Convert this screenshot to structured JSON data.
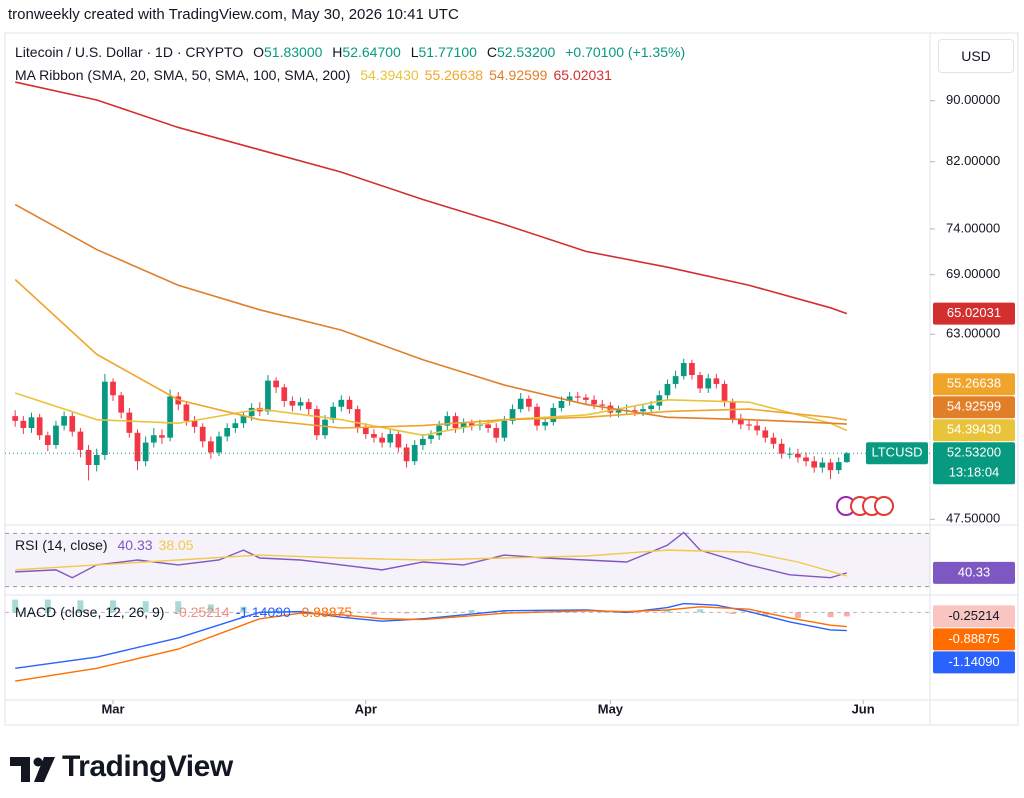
{
  "header": {
    "title": "tronweekly created with TradingView.com, May 30, 2026 10:41 UTC"
  },
  "chart_data": [
    {
      "type": "candlestick",
      "title": "Litecoin / U.S. Dollar · 1D · CRYPTO",
      "legend": {
        "open_label": "O",
        "open": "51.83000",
        "high_label": "H",
        "high": "52.64700",
        "low_label": "L",
        "low": "51.77100",
        "close_label": "C",
        "close": "52.53200",
        "change": "+0.70100 (+1.35%)"
      },
      "indicator": "MA Ribbon (SMA, 20, SMA, 50, SMA, 100, SMA, 200)",
      "currency": "USD",
      "symbol": "LTCUSD",
      "countdown": "13:18:04",
      "up_color": "#089981",
      "down_color": "#f23645",
      "log_scale": true,
      "grid": false,
      "xlim": [
        -1.25,
        112.2
      ],
      "xticks": [
        {
          "value": 12,
          "label": "Mar"
        },
        {
          "value": 43,
          "label": "Apr"
        },
        {
          "value": 73,
          "label": "May"
        },
        {
          "value": 104,
          "label": "Jun"
        }
      ],
      "ylim": [
        47.3,
        99.5
      ],
      "yticks": [
        {
          "value": 90,
          "label": "90.00000"
        },
        {
          "value": 82,
          "label": "82.00000"
        },
        {
          "value": 74,
          "label": "74.00000"
        },
        {
          "value": 69,
          "label": "69.00000"
        },
        {
          "value": 63,
          "label": "63.00000"
        },
        {
          "value": 47.5,
          "label": "47.50000"
        }
      ],
      "open": [
        55.6,
        55.2,
        54.6,
        55.5,
        54.0,
        53.2,
        54.8,
        55.6,
        54.3,
        52.8,
        51.6,
        52.4,
        58.6,
        57.4,
        55.9,
        54.2,
        51.9,
        53.4,
        54.0,
        53.8,
        57.3,
        56.6,
        55.2,
        54.7,
        53.5,
        52.6,
        53.9,
        54.6,
        55.0,
        55.6,
        56.3,
        56.0,
        58.7,
        58.1,
        56.9,
        56.5,
        56.8,
        56.2,
        54.0,
        55.3,
        56.4,
        57.0,
        56.2,
        54.6,
        54.1,
        53.8,
        53.4,
        54.1,
        53.0,
        51.9,
        53.2,
        53.7,
        54.0,
        54.8,
        55.6,
        54.6,
        55.0,
        54.8,
        54.9,
        54.6,
        53.8,
        55.2,
        56.2,
        57.1,
        56.4,
        54.8,
        55.1,
        56.3,
        56.9,
        57.3,
        57.2,
        57.0,
        56.6,
        56.5,
        55.9,
        56.1,
        56.1,
        56.0,
        56.2,
        56.5,
        57.4,
        58.4,
        59.1,
        60.3,
        59.2,
        58.0,
        58.9,
        58.4,
        56.8,
        55.4,
        54.9,
        54.8,
        54.4,
        53.8,
        53.3,
        52.5,
        52.5,
        52.2,
        51.9,
        51.4,
        51.8,
        51.2,
        51.83
      ],
      "high": [
        56.1,
        55.6,
        55.9,
        55.8,
        54.3,
        55.2,
        56.0,
        55.9,
        54.6,
        53.2,
        52.9,
        59.3,
        58.9,
        57.7,
        56.3,
        54.5,
        53.9,
        54.6,
        54.5,
        57.9,
        57.7,
        56.9,
        55.6,
        55.0,
        53.9,
        54.3,
        55.0,
        55.4,
        56.0,
        56.7,
        56.8,
        59.2,
        59.0,
        58.4,
        57.3,
        57.2,
        57.1,
        56.5,
        55.7,
        56.8,
        57.4,
        57.3,
        56.5,
        55.0,
        54.5,
        54.2,
        54.5,
        54.4,
        53.3,
        53.6,
        54.1,
        54.4,
        55.2,
        56.0,
        55.9,
        55.4,
        55.3,
        55.3,
        55.3,
        55.0,
        55.6,
        56.6,
        57.6,
        57.4,
        56.7,
        55.5,
        56.7,
        57.3,
        57.7,
        57.7,
        57.5,
        57.4,
        57.0,
        56.8,
        56.5,
        56.6,
        56.5,
        56.6,
        56.9,
        57.8,
        58.8,
        59.6,
        60.7,
        60.6,
        59.5,
        59.3,
        59.3,
        58.7,
        57.1,
        55.8,
        55.3,
        55.2,
        54.7,
        54.2,
        53.7,
        53.0,
        52.9,
        52.6,
        52.3,
        52.2,
        52.1,
        52.2,
        52.647
      ],
      "low": [
        54.7,
        54.1,
        54.2,
        53.6,
        52.7,
        52.9,
        54.4,
        53.9,
        52.2,
        50.4,
        51.1,
        52.0,
        56.9,
        55.4,
        53.8,
        51.2,
        51.5,
        53.0,
        53.3,
        53.5,
        56.1,
        54.8,
        54.2,
        53.0,
        52.1,
        52.3,
        53.5,
        54.2,
        54.6,
        55.2,
        55.6,
        55.7,
        57.6,
        56.4,
        56.0,
        56.1,
        55.7,
        53.6,
        53.7,
        55.0,
        56.0,
        55.8,
        54.2,
        53.7,
        53.4,
        53.0,
        53.0,
        52.6,
        51.4,
        51.6,
        52.8,
        53.3,
        53.6,
        54.4,
        54.2,
        54.2,
        54.4,
        54.4,
        54.2,
        53.4,
        53.5,
        54.9,
        55.9,
        56.0,
        54.4,
        54.4,
        54.8,
        56.0,
        56.5,
        56.8,
        56.6,
        56.2,
        56.1,
        55.5,
        55.5,
        55.7,
        55.6,
        55.6,
        55.8,
        56.1,
        57.0,
        58.0,
        58.8,
        58.8,
        57.6,
        57.6,
        58.0,
        56.4,
        55.0,
        54.5,
        54.4,
        54.0,
        53.4,
        52.9,
        52.1,
        52.1,
        51.8,
        51.5,
        51.0,
        51.0,
        50.5,
        50.9,
        51.771
      ],
      "close": [
        55.2,
        54.6,
        55.5,
        54.0,
        53.2,
        54.8,
        55.6,
        54.3,
        52.8,
        51.6,
        52.4,
        58.6,
        57.4,
        55.9,
        54.2,
        51.9,
        53.4,
        54.0,
        53.8,
        57.3,
        56.6,
        55.2,
        54.7,
        53.5,
        52.6,
        53.9,
        54.6,
        55.0,
        55.6,
        56.3,
        56.0,
        58.7,
        58.1,
        56.9,
        56.5,
        56.8,
        56.2,
        54.0,
        55.3,
        56.4,
        57.0,
        56.2,
        54.6,
        54.1,
        53.8,
        53.4,
        54.1,
        53.0,
        51.9,
        53.2,
        53.7,
        54.0,
        54.8,
        55.6,
        54.6,
        55.0,
        54.8,
        54.9,
        54.6,
        53.8,
        55.2,
        56.2,
        57.1,
        56.4,
        54.8,
        55.1,
        56.3,
        56.9,
        57.3,
        57.2,
        57.0,
        56.6,
        56.5,
        55.9,
        56.1,
        56.1,
        56.0,
        56.2,
        56.5,
        57.4,
        58.4,
        59.1,
        60.3,
        59.2,
        58.0,
        58.9,
        58.4,
        56.8,
        55.4,
        54.9,
        54.8,
        54.4,
        53.8,
        53.3,
        52.5,
        52.5,
        52.2,
        51.9,
        51.4,
        51.8,
        51.2,
        51.83,
        52.532
      ],
      "series": [
        {
          "color": "#e9c43b",
          "x": [
            0,
            10,
            20,
            30,
            40,
            50,
            60,
            70,
            80,
            90,
            100,
            102
          ],
          "values": [
            57.6,
            55.3,
            55.0,
            56.2,
            55.3,
            54.0,
            55.3,
            55.7,
            57.0,
            56.8,
            55.0,
            54.3943
          ],
          "value_labels": [
            null,
            null,
            null,
            null,
            null,
            null,
            null,
            null,
            null,
            null,
            null,
            "54.39430"
          ]
        },
        {
          "color": "#f0a52a",
          "x": [
            0,
            10,
            20,
            30,
            40,
            50,
            60,
            70,
            80,
            90,
            100,
            102
          ],
          "values": [
            68.5,
            61.1,
            57.0,
            55.3,
            54.6,
            54.8,
            55.3,
            55.5,
            56.0,
            56.2,
            55.5,
            55.26638
          ]
        },
        {
          "color": "#e07f28",
          "x": [
            0,
            10,
            20,
            30,
            40,
            50,
            60,
            70,
            80,
            90,
            100,
            102
          ],
          "values": [
            76.8,
            71.7,
            67.9,
            65.4,
            63.4,
            60.6,
            58.3,
            56.6,
            55.5,
            55.3,
            55.0,
            54.92599
          ]
        },
        {
          "color": "#d32f2f",
          "x": [
            0,
            10,
            20,
            30,
            40,
            50,
            60,
            70,
            80,
            90,
            100,
            102
          ],
          "values": [
            92.6,
            90.1,
            86.4,
            83.5,
            80.7,
            77.4,
            74.5,
            71.5,
            69.8,
            67.9,
            65.6,
            65.02031
          ]
        }
      ]
    },
    {
      "type": "line",
      "title": "RSI (14, close)",
      "ylim": [
        26,
        74
      ],
      "bands": [
        70,
        30
      ],
      "band_color": "#7e57c2",
      "series": [
        {
          "color": "#7e57c2",
          "x": [
            0,
            5,
            7,
            10,
            15,
            20,
            25,
            28,
            30,
            35,
            40,
            45,
            50,
            55,
            60,
            65,
            70,
            75,
            80,
            82,
            84,
            90,
            95,
            100,
            102
          ],
          "values": [
            41.1,
            42.6,
            36.7,
            46.3,
            50,
            46.3,
            50,
            57.4,
            51.5,
            50,
            46.3,
            42.6,
            48.5,
            46.3,
            53.7,
            51.5,
            50,
            48.5,
            61.1,
            70.7,
            57.4,
            46.3,
            38.9,
            36.7,
            40.33
          ]
        },
        {
          "color": "#f2c94c",
          "x": [
            0,
            10,
            20,
            30,
            40,
            50,
            60,
            70,
            80,
            90,
            96,
            102
          ],
          "values": [
            42.6,
            46.3,
            50,
            53.7,
            51.5,
            50,
            51.5,
            53,
            57.4,
            55.9,
            48.5,
            38.05
          ]
        }
      ]
    },
    {
      "type": "line",
      "title": "MACD (close, 12, 26, 9)",
      "ylim": [
        -5.3,
        0.9
      ],
      "histogram": {
        "up_color": "#80cbc4",
        "down_color": "#f28b82",
        "x": [
          0,
          4,
          8,
          12,
          16,
          20,
          24,
          28,
          32,
          36,
          40,
          44,
          48,
          52,
          56,
          60,
          64,
          68,
          72,
          76,
          80,
          84,
          88,
          92,
          96,
          100,
          102
        ],
        "values": [
          0.8,
          0.8,
          0.75,
          0.75,
          0.7,
          0.7,
          0.5,
          0.35,
          0.2,
          0.05,
          -0.15,
          -0.15,
          -0.05,
          0.05,
          0.15,
          0.15,
          0.1,
          0.05,
          0.05,
          -0.05,
          0.15,
          0.2,
          -0.1,
          -0.25,
          -0.35,
          -0.3,
          -0.25214
        ]
      },
      "series": [
        {
          "color": "#2962ff",
          "x": [
            0,
            10,
            20,
            28,
            30,
            35,
            40,
            45,
            50,
            60,
            70,
            75,
            80,
            82,
            86,
            90,
            95,
            100,
            102
          ],
          "values": [
            -3.5,
            -2.8,
            -1.6,
            -0.3,
            0,
            0.05,
            -0.3,
            -0.55,
            -0.4,
            0.1,
            0.15,
            0,
            0.3,
            0.55,
            0.45,
            0.05,
            -0.6,
            -1.1,
            -1.1409
          ],
          "value_labels": [
            null,
            null,
            null,
            null,
            null,
            null,
            null,
            null,
            null,
            null,
            null,
            null,
            null,
            null,
            null,
            null,
            null,
            null,
            "-1.14090"
          ]
        },
        {
          "color": "#ff6d00",
          "x": [
            0,
            10,
            20,
            30,
            35,
            40,
            45,
            50,
            60,
            70,
            75,
            80,
            84,
            90,
            95,
            100,
            102
          ],
          "values": [
            -4.3,
            -3.5,
            -2.3,
            -0.4,
            -0.05,
            -0.15,
            -0.4,
            -0.45,
            -0.05,
            0.1,
            0.05,
            0.15,
            0.35,
            0.2,
            -0.35,
            -0.8,
            -0.88875
          ]
        }
      ]
    }
  ],
  "footer": {
    "logo": "TradingView"
  }
}
